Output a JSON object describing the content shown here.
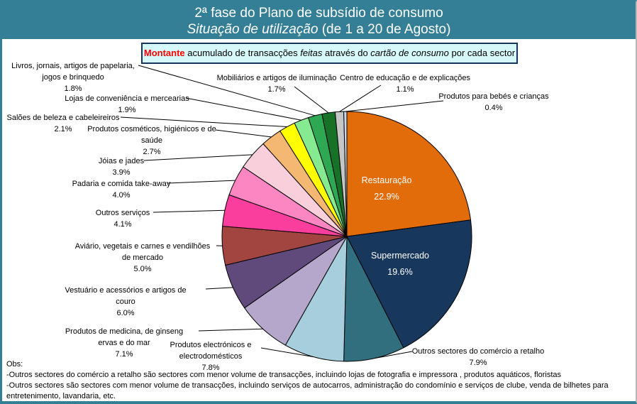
{
  "header": {
    "title_line1": "2ª fase do Plano de subsídio de consumo",
    "title_line2_italic": "Situação de utilização",
    "title_line2_rest": " (de 1 a 20 de Agosto)"
  },
  "subtitle": {
    "seg_bold_red": "Montante",
    "seg2": " acumulado de transacções ",
    "seg_italic1": "feitas",
    "seg4": " através do ",
    "seg_italic2": "cartão de consumo",
    "seg6": " por cada sector"
  },
  "chart_data": {
    "type": "pie",
    "title": "Montante acumulado de transacções feitas através do cartão de consumo por cada sector",
    "start_angle_deg": 0,
    "direction": "clockwise",
    "units": "%",
    "slices": [
      {
        "label_lines": [
          "Restauração"
        ],
        "value": 22.9,
        "color": "#E36C0A",
        "label_inside": true,
        "text_color": "#FFFFFF"
      },
      {
        "label_lines": [
          "Supermercado"
        ],
        "value": 19.6,
        "color": "#17375D",
        "label_inside": true,
        "text_color": "#FFFFFF"
      },
      {
        "label_lines": [
          "Outros sectores do comércio a retalho"
        ],
        "value": 7.9,
        "color": "#326F7E"
      },
      {
        "label_lines": [
          "Produtos electrónicos e",
          "electrodomésticos"
        ],
        "value": 7.8,
        "color": "#A6CEDC"
      },
      {
        "label_lines": [
          "Produtos de medicina, de ginseng",
          "ervas e do mar"
        ],
        "value": 7.1,
        "color": "#B5A6CB"
      },
      {
        "label_lines": [
          "Vestuário e acessórios e artigos de",
          "couro"
        ],
        "value": 6.0,
        "color": "#5F4A7B"
      },
      {
        "label_lines": [
          "Aviário, vegetais e carnes e vendilhões",
          "de mercado"
        ],
        "value": 5.0,
        "color": "#A24440"
      },
      {
        "label_lines": [
          "Outros serviços"
        ],
        "value": 4.1,
        "color": "#FA3E9D"
      },
      {
        "label_lines": [
          "Padaria e comida take-away"
        ],
        "value": 4.0,
        "color": "#FB86C1"
      },
      {
        "label_lines": [
          "Jóias e jades"
        ],
        "value": 3.9,
        "color": "#F8CFDA"
      },
      {
        "label_lines": [
          "Produtos cosméticos, higiénicos e de",
          "saúde"
        ],
        "value": 2.7,
        "color": "#F5B873"
      },
      {
        "label_lines": [
          "Salões de beleza e cabeleireiros"
        ],
        "value": 2.1,
        "color": "#FFFF00"
      },
      {
        "label_lines": [
          "Lojas de conveniência e mercearias"
        ],
        "value": 1.9,
        "color": "#86EB90"
      },
      {
        "label_lines": [
          "Livros, jornais, artigos de papelaria,",
          "jogos e brinquedo"
        ],
        "value": 1.8,
        "color": "#2EA853"
      },
      {
        "label_lines": [
          "Mobiliários e artigos de iluminação"
        ],
        "value": 1.7,
        "color": "#177228"
      },
      {
        "label_lines": [
          "Centro de educação e de explicações"
        ],
        "value": 1.1,
        "color": "#C6C6C6"
      },
      {
        "label_lines": [
          "Produtos para bebés e crianças"
        ],
        "value": 0.4,
        "color": "#C9D9E9"
      }
    ]
  },
  "notes": {
    "obs": "Obs:",
    "line1": " -Outros sectores do comércio a retalho são sectores com menor volume de transacções, incluindo lojas de fotografia e impressora , produtos aquáticos, floristas",
    "line2": " -Outros sectores são sectores com menor volume de transacções, incluindo serviços de autocarros, administração do condomínio e serviços de clube, venda de bilhetes para entretenimento, lavandaria, etc."
  },
  "colors": {
    "header_bg": "#347F96",
    "subtitle_bg": "#D7F8F8",
    "subtitle_border": "#17365D",
    "accent_red": "#FF0000",
    "slice_outline": "#000000"
  }
}
